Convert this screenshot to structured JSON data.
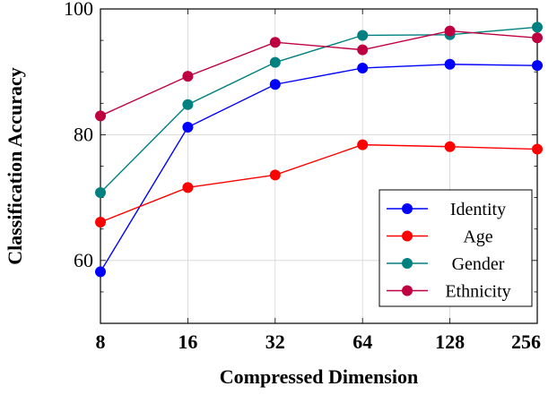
{
  "chart_data": {
    "type": "line",
    "xlabel": "Compressed Dimension",
    "ylabel": "Classification Accuracy",
    "categories": [
      "8",
      "16",
      "32",
      "64",
      "128",
      "256"
    ],
    "y_ticks": [
      "60",
      "80",
      "100"
    ],
    "ylim": [
      50,
      100
    ],
    "grid": true,
    "legend_position": "bottom-right",
    "series": [
      {
        "name": "Identity",
        "color": "#0000ff",
        "values": [
          58.2,
          81.2,
          88.0,
          90.6,
          91.2,
          91.0
        ]
      },
      {
        "name": "Age",
        "color": "#ff0000",
        "values": [
          66.1,
          71.6,
          73.6,
          78.4,
          78.1,
          77.7
        ]
      },
      {
        "name": "Gender",
        "color": "#008080",
        "values": [
          70.8,
          84.8,
          91.5,
          95.8,
          95.9,
          97.1
        ]
      },
      {
        "name": "Ethnicity",
        "color": "#bf0040",
        "values": [
          83.0,
          89.3,
          94.7,
          93.5,
          96.5,
          95.4
        ]
      }
    ]
  }
}
